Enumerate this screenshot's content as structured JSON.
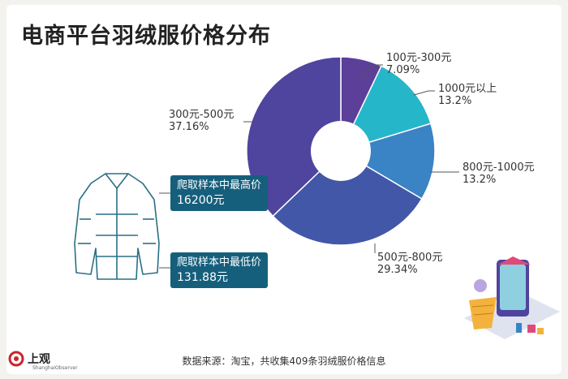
{
  "chart_data": {
    "type": "pie",
    "title": "电商平台羽绒服价格分布",
    "categories": [
      "100元-300元",
      "1000元以上",
      "800元-1000元",
      "500元-800元",
      "300元-500元"
    ],
    "values": [
      7.09,
      13.2,
      13.2,
      29.34,
      37.16
    ],
    "value_labels": [
      "7.09%",
      "13.2%",
      "13.2%",
      "29.34%",
      "37.16%"
    ],
    "colors": [
      "#5b3f99",
      "#26b6c9",
      "#3a83c4",
      "#4357a8",
      "#4f449e"
    ],
    "donut": true,
    "legend": "none"
  },
  "callouts": {
    "max_label": "爬取样本中最高价",
    "max_value": "16200元",
    "min_label": "爬取样本中最低价",
    "min_value": "131.88元"
  },
  "footer": "数据来源：淘宝，共收集409条羽绒服价格信息",
  "logo": {
    "name": "上观",
    "sub": "ShanghaiObserver"
  },
  "icons": [
    "jacket-illustration",
    "shopping-cart-illustration"
  ]
}
